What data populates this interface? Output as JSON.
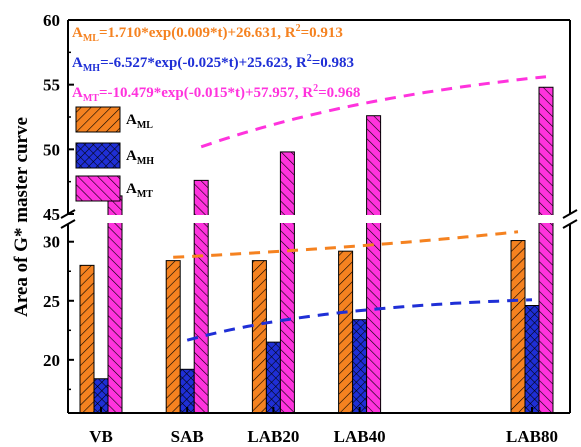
{
  "chart_data": {
    "type": "bar",
    "ylabel": "Area of G* master curve",
    "categories": [
      "VB",
      "SAB",
      "LAB20",
      "LAB40",
      "LAB80"
    ],
    "x": [
      0,
      20,
      40,
      60,
      100
    ],
    "axis_break": [
      31.5,
      45
    ],
    "ylim": [
      15.5,
      60
    ],
    "yticks": [
      20,
      25,
      30,
      45,
      50,
      55,
      60
    ],
    "series": [
      {
        "name": "ML",
        "color": "#f58220",
        "pattern": "hatch-right",
        "values": [
          28.0,
          28.4,
          28.4,
          29.2,
          30.1
        ]
      },
      {
        "name": "MH",
        "color": "#1f2fd6",
        "pattern": "crosshatch",
        "values": [
          18.4,
          19.2,
          21.5,
          23.4,
          24.6
        ]
      },
      {
        "name": "MT",
        "color": "#ff33dd",
        "pattern": "hatch-left",
        "values": [
          46.4,
          47.6,
          49.8,
          52.6,
          54.8
        ]
      }
    ],
    "fits": [
      {
        "series": "ML",
        "color": "#f58220",
        "a": 1.71,
        "b": 0.009,
        "c": 26.631,
        "r2": "0.913",
        "pre": "A",
        "sub": "ML",
        "body": "=1.710*exp(0.009*t)+26.631, R",
        "sup": "2",
        "post": "=0.913"
      },
      {
        "series": "MH",
        "color": "#1f2fd6",
        "a": -6.527,
        "b": -0.025,
        "c": 25.623,
        "r2": "0.983",
        "pre": "A",
        "sub": "MH",
        "body": "=-6.527*exp(-0.025*t)+25.623, R",
        "sup": "2",
        "post": "=0.983"
      },
      {
        "series": "MT",
        "color": "#ff33dd",
        "a": -10.479,
        "b": -0.015,
        "c": 57.957,
        "r2": "0.968",
        "pre": "A",
        "sub": "MT",
        "body": "=-10.479*exp(-0.015*t)+57.957, R",
        "sup": "2",
        "post": "=0.968"
      }
    ],
    "legend": [
      {
        "pre": "A",
        "sub": "ML",
        "series": "ML"
      },
      {
        "pre": "A",
        "sub": "MH",
        "series": "MH"
      },
      {
        "pre": "A",
        "sub": "MT",
        "series": "MT"
      }
    ],
    "legend_position": "top-left",
    "grid": false
  }
}
